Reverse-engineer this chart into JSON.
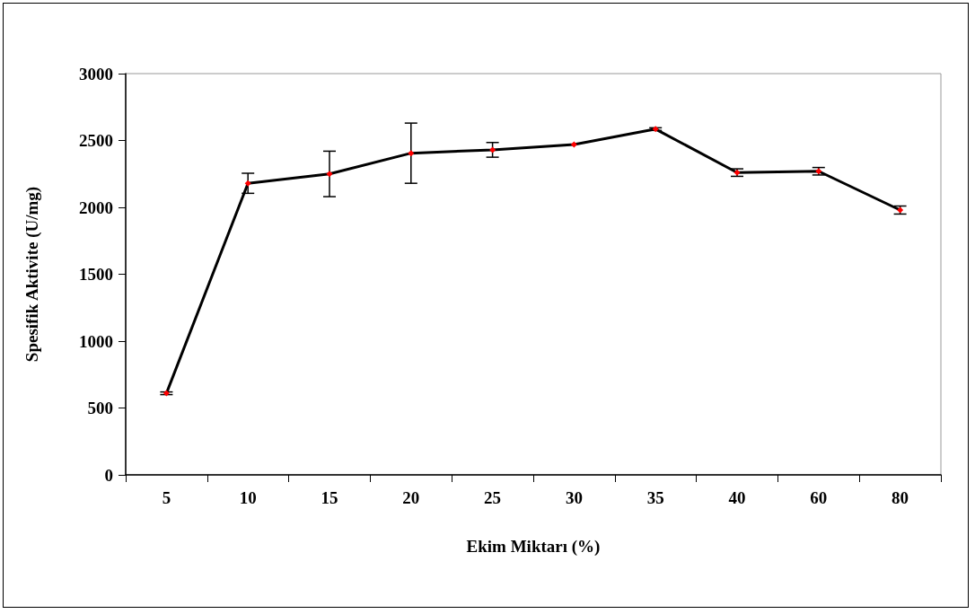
{
  "chart_data": {
    "type": "line",
    "xlabel": "Ekim Miktarı (%)",
    "ylabel": "Spesifik Aktivite (U/mg)",
    "categories": [
      "5",
      "10",
      "15",
      "20",
      "25",
      "30",
      "35",
      "40",
      "60",
      "80"
    ],
    "series": [
      {
        "color": "#000000",
        "values": [
          610,
          2180,
          2250,
          2405,
          2430,
          2470,
          2585,
          2260,
          2270,
          1980
        ],
        "errors": [
          10,
          75,
          170,
          225,
          55,
          null,
          10,
          28,
          28,
          30
        ]
      }
    ],
    "ylim": [
      0,
      3000
    ],
    "yticks": [
      0,
      500,
      1000,
      1500,
      2000,
      2500,
      3000
    ],
    "grid": false,
    "marker": "diamond",
    "line_style": "solid"
  }
}
